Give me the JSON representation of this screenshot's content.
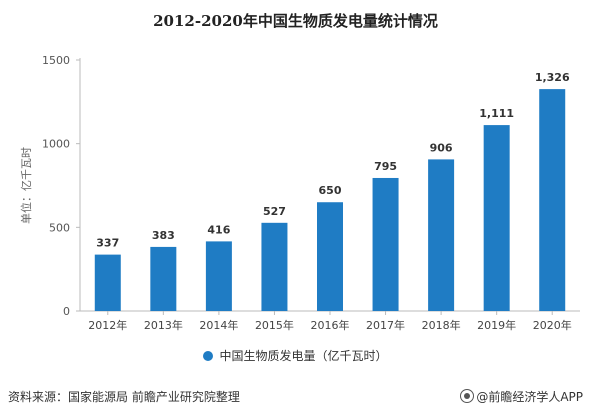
{
  "title": "2012-2020年中国生物质发电量统计情况",
  "source": "资料来源：国家能源局 前瞻产业研究院整理",
  "brand": "@前瞻经济学人APP",
  "colors": {
    "bar": "#1f7cc4",
    "axis": "#bbbbbb",
    "text": "#333333"
  },
  "chart_data": {
    "type": "bar",
    "title": "2012-2020年中国生物质发电量统计情况",
    "ylabel": "单位：亿千瓦时",
    "xlabel": "",
    "ylim": [
      0,
      1500
    ],
    "yticks": [
      0,
      500,
      1000,
      1500
    ],
    "categories": [
      "2012年",
      "2013年",
      "2014年",
      "2015年",
      "2016年",
      "2017年",
      "2018年",
      "2019年",
      "2020年"
    ],
    "series": [
      {
        "name": "中国生物质发电量（亿千瓦时）",
        "values": [
          337,
          383,
          416,
          527,
          650,
          795,
          906,
          1111,
          1326
        ],
        "labels": [
          "337",
          "383",
          "416",
          "527",
          "650",
          "795",
          "906",
          "1,111",
          "1,326"
        ]
      }
    ],
    "legend": "bottom",
    "grid": false
  }
}
